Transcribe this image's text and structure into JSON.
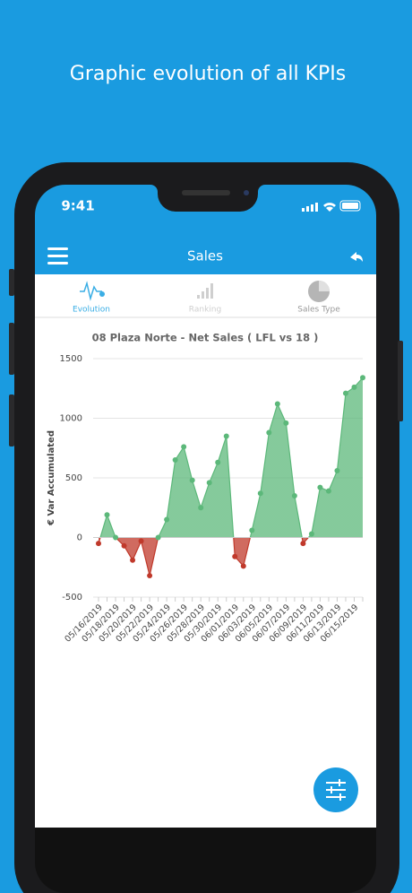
{
  "header": {
    "tagline": "Graphic evolution of all KPIs"
  },
  "status_bar": {
    "time": "9:41"
  },
  "app_bar": {
    "title": "Sales"
  },
  "tabs": [
    "Evolution",
    "Ranking",
    "Sales Type"
  ],
  "chart_data": {
    "type": "area",
    "title": "08 Plaza Norte - Net Sales ( LFL vs 18 )",
    "y_label": "€ Var Accumulated",
    "categories": [
      "05/16/2019",
      null,
      "05/18/2019",
      null,
      "05/20/2019",
      null,
      "05/22/2019",
      null,
      "05/24/2019",
      null,
      "05/26/2019",
      null,
      "05/28/2019",
      null,
      "05/30/2019",
      null,
      "06/01/2019",
      null,
      "06/03/2019",
      null,
      "06/05/2019",
      null,
      "06/07/2019",
      null,
      "06/09/2019",
      null,
      "06/11/2019",
      null,
      "06/13/2019",
      null,
      "06/15/2019",
      null
    ],
    "values": [
      -50,
      190,
      0,
      -70,
      -190,
      -30,
      -320,
      0,
      150,
      650,
      760,
      480,
      250,
      460,
      630,
      850,
      -160,
      -240,
      60,
      370,
      880,
      1120,
      960,
      350,
      -50,
      30,
      420,
      390,
      560,
      1210,
      1260,
      1340
    ],
    "positive_color": "#5cb87a",
    "negative_color": "#c0392b",
    "ylim": [
      -500,
      1500
    ],
    "yticks": [
      -500,
      0,
      500,
      1000,
      1500
    ],
    "grid": true
  }
}
